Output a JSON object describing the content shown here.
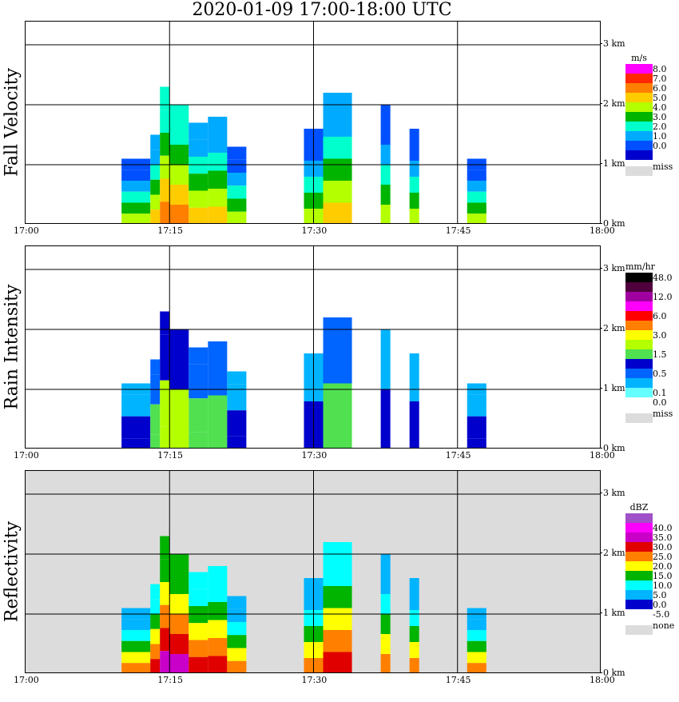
{
  "title": "2020-01-09   17:00-18:00 UTC",
  "x_tick_labels": [
    "17:00",
    "17:15",
    "17:30",
    "17:45",
    "18:00"
  ],
  "y_tick_labels": [
    "0 km",
    "1 km",
    "2 km",
    "3 km"
  ],
  "colors": {
    "missing": "#dcdcdc",
    "grid": "#000000"
  },
  "panels": [
    {
      "ylabel": "Fall Velocity",
      "background": "#ffffff",
      "legend": {
        "unit": "m/s",
        "miss_label": "miss",
        "entries": [
          {
            "label": "8.0",
            "color": "#ff00ff"
          },
          {
            "label": "7.0",
            "color": "#ff2800"
          },
          {
            "label": "6.0",
            "color": "#ff7f00"
          },
          {
            "label": "5.0",
            "color": "#ffcc00"
          },
          {
            "label": "4.0",
            "color": "#b4ff00"
          },
          {
            "label": "3.0",
            "color": "#00b400"
          },
          {
            "label": "2.0",
            "color": "#00ffcc"
          },
          {
            "label": "1.0",
            "color": "#00aaff"
          },
          {
            "label": "0.0",
            "color": "#0050ff"
          },
          {
            "label": "",
            "color": "#0000cc"
          }
        ]
      }
    },
    {
      "ylabel": "Rain Intensity",
      "background": "#ffffff",
      "legend": {
        "unit": "mm/hr",
        "miss_label": "miss",
        "entries": [
          {
            "label": "48.0",
            "color": "#000000"
          },
          {
            "label": "",
            "color": "#50003c"
          },
          {
            "label": "12.0",
            "color": "#a000a0"
          },
          {
            "label": "",
            "color": "#ff00ff"
          },
          {
            "label": "6.0",
            "color": "#ff0000"
          },
          {
            "label": "",
            "color": "#ff7f00"
          },
          {
            "label": "3.0",
            "color": "#ffff00"
          },
          {
            "label": "",
            "color": "#b4ff00"
          },
          {
            "label": "1.5",
            "color": "#50e050"
          },
          {
            "label": "",
            "color": "#0000cc"
          },
          {
            "label": "0.5",
            "color": "#0064ff"
          },
          {
            "label": "",
            "color": "#00b4ff"
          },
          {
            "label": "0.1",
            "color": "#64ffff"
          },
          {
            "label": "0.0",
            "color": "#ffffff"
          }
        ]
      }
    },
    {
      "ylabel": "Reflectivity",
      "background": "#dcdcdc",
      "legend": {
        "unit": "dBZ",
        "miss_label": "none",
        "entries": [
          {
            "label": "",
            "color": "#a050c8"
          },
          {
            "label": "40.0",
            "color": "#ff00ff"
          },
          {
            "label": "35.0",
            "color": "#c800c8"
          },
          {
            "label": "30.0",
            "color": "#e00000"
          },
          {
            "label": "25.0",
            "color": "#ff7f00"
          },
          {
            "label": "20.0",
            "color": "#ffff00"
          },
          {
            "label": "15.0",
            "color": "#00b400"
          },
          {
            "label": "10.0",
            "color": "#00ffff"
          },
          {
            "label": "5.0",
            "color": "#00b4ff"
          },
          {
            "label": "0.0",
            "color": "#0000cc"
          },
          {
            "label": "-5.0",
            "color": "#ffffff"
          }
        ]
      }
    }
  ],
  "chart_data": {
    "type": "heatmap",
    "title": "2020-01-09   17:00-18:00 UTC",
    "xlabel": "",
    "ylabel": "",
    "x_range": [
      "17:00",
      "18:00"
    ],
    "y_range_km": [
      0,
      3.2
    ],
    "grid": true,
    "cells": [
      {
        "start": "17:10",
        "end": "17:13",
        "top_km": 1.1,
        "level": 1
      },
      {
        "start": "17:13",
        "end": "17:14",
        "top_km": 1.5,
        "level": 2
      },
      {
        "start": "17:14",
        "end": "17:15",
        "top_km": 2.3,
        "level": 3
      },
      {
        "start": "17:15",
        "end": "17:17",
        "top_km": 2.0,
        "level": 3
      },
      {
        "start": "17:17",
        "end": "17:19",
        "top_km": 1.7,
        "level": 2
      },
      {
        "start": "17:19",
        "end": "17:21",
        "top_km": 1.8,
        "level": 2
      },
      {
        "start": "17:21",
        "end": "17:23",
        "top_km": 1.3,
        "level": 1
      },
      {
        "start": "17:29",
        "end": "17:31",
        "top_km": 1.6,
        "level": 1
      },
      {
        "start": "17:31",
        "end": "17:34",
        "top_km": 2.2,
        "level": 2
      },
      {
        "start": "17:37",
        "end": "17:38",
        "top_km": 2.0,
        "level": 1
      },
      {
        "start": "17:40",
        "end": "17:41",
        "top_km": 1.6,
        "level": 1
      },
      {
        "start": "17:46",
        "end": "17:48",
        "top_km": 1.1,
        "level": 1
      }
    ]
  }
}
